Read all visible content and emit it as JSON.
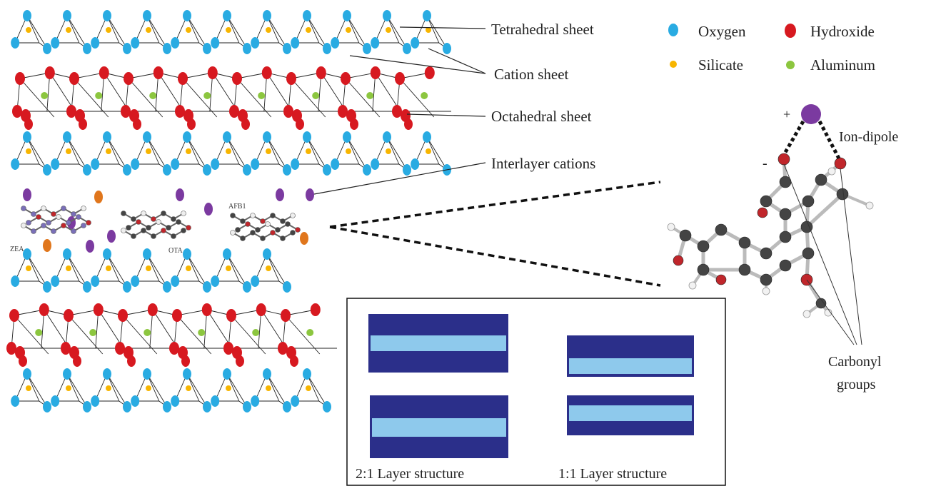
{
  "legend": {
    "items": [
      {
        "label": "Oxygen",
        "color": "#29abe2",
        "icon": "oxygen-atom-icon"
      },
      {
        "label": "Hydroxide",
        "color": "#d71920",
        "icon": "hydroxide-atom-icon"
      },
      {
        "label": "Silicate",
        "color": "#f7b500",
        "icon": "silicate-atom-icon"
      },
      {
        "label": "Aluminum",
        "color": "#8cc63f",
        "icon": "aluminum-atom-icon"
      }
    ]
  },
  "annotations": {
    "tetrahedral": "Tetrahedral sheet",
    "cation": "Cation sheet",
    "octahedral": "Octahedral sheet",
    "interlayer": "Interlayer cations"
  },
  "molecules": {
    "zea": "ZEA",
    "ota": "OTA",
    "afb1": "AFB1"
  },
  "detail": {
    "plus": "+",
    "minus": "-",
    "ion_dipole": "Ion-dipole",
    "carbonyl_line1": "Carbonyl",
    "carbonyl_line2": "groups"
  },
  "inset": {
    "label_21": "2:1 Layer structure",
    "label_11": "1:1 Layer structure",
    "dark_color": "#2b2f8a",
    "light_color": "#8ec9ec"
  },
  "colors": {
    "cation_purple": "#7b3aa0",
    "cation_orange": "#e0761c"
  }
}
